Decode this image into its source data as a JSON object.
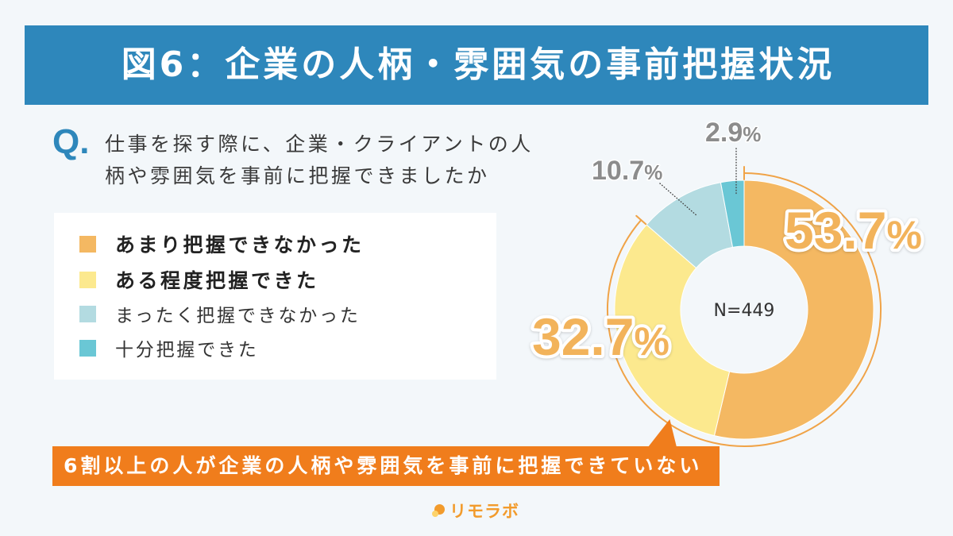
{
  "chart_data": {
    "type": "pie",
    "style": "donut",
    "title": "図6：企業の人柄・雰囲気の事前把握状況",
    "categories": [
      "あまり把握できなかった",
      "ある程度把握できた",
      "まったく把握できなかった",
      "十分把握できた"
    ],
    "values": [
      53.7,
      32.7,
      10.7,
      2.9
    ],
    "unit": "%",
    "colors": [
      "#f4b862",
      "#fce98e",
      "#b3dbe1",
      "#6ac7d5"
    ],
    "center_label": "N=449",
    "legend_position": "left"
  },
  "question": {
    "marker": "Q.",
    "lines": [
      "仕事を探す際に、企業・クライアントの人",
      "柄や雰囲気を事前に把握できましたか"
    ]
  },
  "callout": {
    "text": "6割以上の人が企業の人柄や雰囲気を事前に把握できていない"
  },
  "brand": {
    "name": "リモラボ"
  },
  "theme": {
    "background": "#f3f7fa",
    "header_color": "#2e87bb",
    "callout_color": "#f07d1c",
    "label_color": "#f2b35b",
    "minor_label_color": "#8c8c8c",
    "arc_color": "#f0a347",
    "brand_color": "#f29b2c"
  }
}
